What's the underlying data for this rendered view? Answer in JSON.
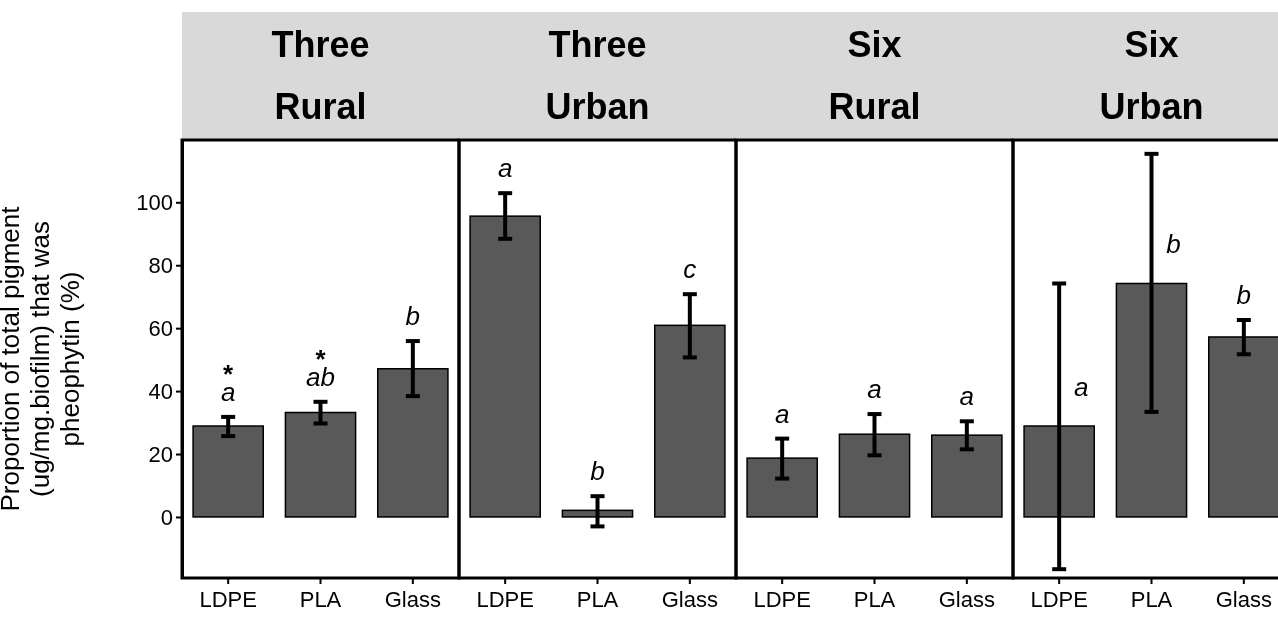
{
  "chart_data": [
    {
      "type": "bar",
      "title": "Three Rural",
      "ylabel": "Proportion of total pigment (ug/mg.biofilm) that was pheophytin (%)",
      "categories": [
        "LDPE",
        "PLA",
        "Glass"
      ],
      "values": [
        28.9,
        33.2,
        47.1
      ],
      "errors": [
        [
          25.7,
          31.8
        ],
        [
          29.7,
          36.6
        ],
        [
          38.4,
          55.9
        ]
      ],
      "color": "#595959",
      "ylim": [
        -19.4,
        119.8
      ],
      "yticks": [
        0,
        20,
        40,
        60,
        80,
        100
      ],
      "value_labels": [
        "a",
        "ab",
        "b"
      ],
      "annotations": [
        "*",
        "*"
      ]
    },
    {
      "type": "bar",
      "title": "Three Urban",
      "categories": [
        "LDPE",
        "PLA",
        "Glass"
      ],
      "values": [
        95.6,
        2.1,
        60.9
      ],
      "errors": [
        [
          88.4,
          102.9
        ],
        [
          -3.0,
          6.6
        ],
        [
          50.7,
          70.8
        ]
      ],
      "color": "#595959",
      "ylim": [
        -19.4,
        119.8
      ],
      "yticks": [
        0,
        20,
        40,
        60,
        80,
        100
      ],
      "tick_labels": "x",
      "value_labels": [
        "a",
        "b",
        "c"
      ]
    },
    {
      "type": "bar",
      "title": "Six Rural",
      "categories": [
        "LDPE",
        "PLA",
        "Glass"
      ],
      "values": [
        18.7,
        26.3,
        26.0
      ],
      "errors": [
        [
          12.2,
          24.9
        ],
        [
          19.6,
          32.7
        ],
        [
          21.5,
          30.4
        ]
      ],
      "color": "#595959",
      "ylim": [
        -19.4,
        119.8
      ],
      "yticks": [
        0,
        20,
        40,
        60,
        80,
        100
      ],
      "tick_labels": "x",
      "value_labels": [
        "a",
        "a",
        "a"
      ]
    },
    {
      "type": "bar",
      "title": "Six Urban",
      "categories": [
        "LDPE",
        "PLA",
        "Glass"
      ],
      "values": [
        28.9,
        74.2,
        57.2
      ],
      "errors": [
        [
          -16.6,
          74.2
        ],
        [
          33.4,
          115.4
        ],
        [
          51.7,
          62.6
        ]
      ],
      "color": "#595959",
      "ylim": [
        -19.4,
        119.8
      ],
      "yticks": [
        0,
        20,
        40,
        60,
        80,
        100
      ],
      "tick_labels": "x",
      "value_labels": [
        "a",
        "b",
        "b"
      ]
    }
  ]
}
